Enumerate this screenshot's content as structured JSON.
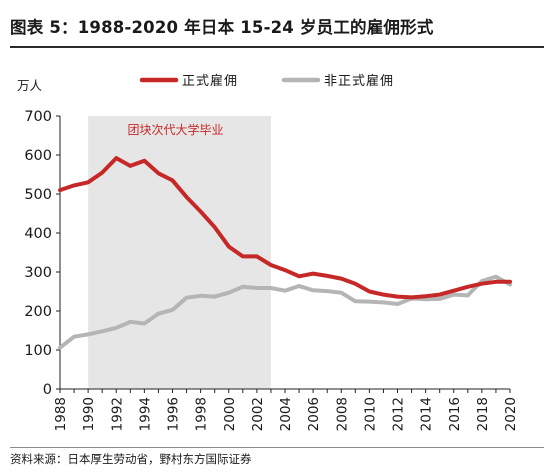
{
  "title": "图表 5：1988-2020 年日本 15-24 岁员工的雇佣形式",
  "source": "资料来源：日本厚生劳动省，野村东方国际证券",
  "chart_data": {
    "type": "line",
    "title": "图表 5：1988-2020 年日本 15-24 岁员工的雇佣形式",
    "ylabel": "万人",
    "xlabel": "",
    "ylim": [
      0,
      700
    ],
    "yticks": [
      0,
      100,
      200,
      300,
      400,
      500,
      600,
      700
    ],
    "xlim": [
      1988,
      2020
    ],
    "xticks": [
      "1988",
      "1990",
      "1992",
      "1994",
      "1996",
      "1998",
      "2000",
      "2002",
      "2004",
      "2006",
      "2008",
      "2010",
      "2012",
      "2014",
      "2016",
      "2018",
      "2020"
    ],
    "grid": false,
    "legend": "top",
    "x": [
      1988,
      1989,
      1990,
      1991,
      1992,
      1993,
      1994,
      1995,
      1996,
      1997,
      1998,
      1999,
      2000,
      2001,
      2002,
      2003,
      2004,
      2005,
      2006,
      2007,
      2008,
      2009,
      2010,
      2011,
      2012,
      2013,
      2014,
      2015,
      2016,
      2017,
      2018,
      2019,
      2020
    ],
    "series": [
      {
        "name": "正式雇佣",
        "color": "#c62828",
        "values": [
          510,
          522,
          530,
          555,
          592,
          572,
          585,
          553,
          535,
          492,
          455,
          415,
          365,
          340,
          340,
          318,
          305,
          289,
          296,
          290,
          283,
          270,
          250,
          242,
          237,
          235,
          238,
          242,
          252,
          262,
          270,
          275,
          275
        ]
      },
      {
        "name": "非正式雇佣",
        "color": "#b5b5b5",
        "values": [
          106,
          134,
          140,
          148,
          157,
          172,
          168,
          193,
          203,
          234,
          239,
          237,
          247,
          262,
          259,
          259,
          252,
          264,
          253,
          251,
          247,
          225,
          224,
          222,
          218,
          232,
          230,
          231,
          242,
          240,
          277,
          288,
          268
        ]
      }
    ],
    "annotation": {
      "text": "团块次代大学毕业",
      "x_start": 1990,
      "x_end": 2003,
      "fill": "#e6e6e6",
      "color": "#c62828"
    }
  }
}
